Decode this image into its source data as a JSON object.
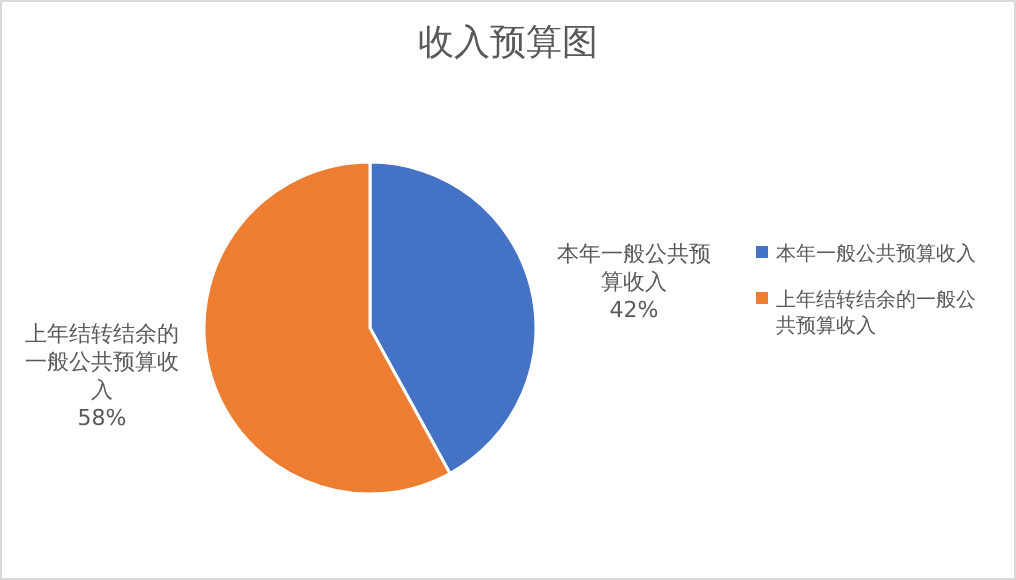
{
  "chart_data": {
    "type": "pie",
    "title": "收入预算图",
    "categories": [
      "本年一般公共预算收入",
      "上年结转结余的一般公共预算收入"
    ],
    "values": [
      42,
      58
    ],
    "colors": [
      "#4472c4",
      "#ed7d31"
    ],
    "value_labels": [
      "42%",
      "58%"
    ],
    "legend": "right"
  }
}
